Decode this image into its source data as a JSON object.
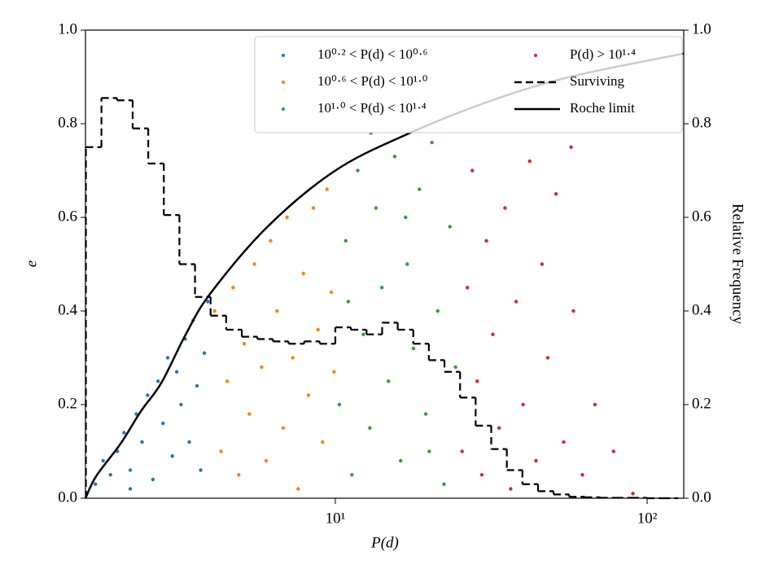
{
  "chart_data": {
    "type": "scatter",
    "x_label": "P(d)",
    "y_label": "e",
    "y2_label": "Relative Frequency",
    "xlog": true,
    "xlim": [
      1.58,
      131
    ],
    "xticks": [
      {
        "value": 10,
        "label": "10¹"
      },
      {
        "value": 100,
        "label": "10²"
      }
    ],
    "ylim": [
      0,
      1
    ],
    "yticks": [
      {
        "value": 0,
        "label": "0.0"
      },
      0.2,
      0.4,
      0.6,
      0.8,
      {
        "value": 1,
        "label": "1.0"
      }
    ],
    "y2lim": [
      0,
      1
    ],
    "y2ticks": [
      {
        "value": 0,
        "label": "0.0"
      },
      0.2,
      0.4,
      0.6,
      0.8,
      {
        "value": 1,
        "label": "1.0"
      }
    ],
    "legend": "upper right",
    "series": [
      {
        "name": "10⁰·² < P(d) < 10⁰·⁶",
        "type": "scatter",
        "color": "#1f77b4",
        "x": [
          1.7,
          1.8,
          1.9,
          2.0,
          2.1,
          2.2,
          2.3,
          2.4,
          2.5,
          2.6,
          2.7,
          2.8,
          2.9,
          3.0,
          3.1,
          3.2,
          3.3,
          3.4,
          3.5,
          3.6,
          3.7,
          3.8,
          3.9,
          2.2
        ],
        "values": [
          0.03,
          0.08,
          0.05,
          0.1,
          0.14,
          0.06,
          0.18,
          0.12,
          0.22,
          0.04,
          0.25,
          0.16,
          0.3,
          0.09,
          0.27,
          0.2,
          0.34,
          0.12,
          0.38,
          0.24,
          0.06,
          0.31,
          0.42,
          0.02
        ]
      },
      {
        "name": "10⁰·⁶ < P(d) < 10¹·⁰",
        "type": "scatter",
        "color": "#ff7f0e",
        "x": [
          4.1,
          4.3,
          4.5,
          4.7,
          4.9,
          5.1,
          5.3,
          5.5,
          5.8,
          6.0,
          6.2,
          6.5,
          6.8,
          7.0,
          7.3,
          7.6,
          7.9,
          8.2,
          8.5,
          8.8,
          9.1,
          9.4,
          9.7,
          9.9
        ],
        "values": [
          0.4,
          0.1,
          0.25,
          0.45,
          0.05,
          0.33,
          0.18,
          0.5,
          0.28,
          0.08,
          0.55,
          0.4,
          0.15,
          0.6,
          0.3,
          0.02,
          0.48,
          0.22,
          0.62,
          0.36,
          0.12,
          0.66,
          0.44,
          0.27
        ]
      },
      {
        "name": "10¹·⁰ < P(d) < 10¹·⁴",
        "type": "scatter",
        "color": "#2ca02c",
        "x": [
          10.3,
          10.8,
          11.3,
          11.8,
          12.3,
          12.9,
          13.5,
          14.1,
          14.8,
          15.5,
          16.2,
          17.0,
          17.8,
          18.6,
          19.5,
          20.4,
          21.3,
          22.3,
          23.3,
          24.3,
          11.0,
          16.8,
          20.0,
          13.0
        ],
        "values": [
          0.2,
          0.55,
          0.05,
          0.7,
          0.35,
          0.15,
          0.62,
          0.45,
          0.25,
          0.73,
          0.08,
          0.5,
          0.32,
          0.66,
          0.18,
          0.76,
          0.4,
          0.03,
          0.58,
          0.28,
          0.42,
          0.6,
          0.1,
          0.78
        ]
      },
      {
        "name": "P(d) > 10¹·⁴",
        "type": "scatter",
        "color": "#d62728",
        "x": [
          25.5,
          26.5,
          27.5,
          28.5,
          29.5,
          30.5,
          32,
          33.5,
          35,
          36.5,
          38,
          40,
          42,
          44,
          46,
          48,
          51,
          54,
          58,
          62,
          68,
          78,
          90,
          57
        ],
        "values": [
          0.1,
          0.45,
          0.7,
          0.25,
          0.05,
          0.55,
          0.35,
          0.15,
          0.62,
          0.02,
          0.42,
          0.2,
          0.72,
          0.08,
          0.5,
          0.3,
          0.65,
          0.12,
          0.4,
          0.05,
          0.2,
          0.1,
          0.01,
          0.75
        ]
      },
      {
        "name": "Surviving",
        "type": "step",
        "color": "#000000",
        "axis": "y2",
        "bins": [
          1.585,
          1.778,
          1.995,
          2.239,
          2.512,
          2.818,
          3.162,
          3.548,
          3.981,
          4.467,
          5.012,
          5.623,
          6.31,
          7.079,
          7.943,
          8.913,
          10,
          11.22,
          12.59,
          14.13,
          15.85,
          17.78,
          19.95,
          22.39,
          25.12,
          28.18,
          31.62,
          35.48,
          39.81,
          44.67,
          50.12,
          56.23,
          63.1,
          70.79,
          79.43,
          89.13,
          100,
          112.2,
          125.9
        ],
        "values": [
          0.75,
          0.855,
          0.85,
          0.79,
          0.715,
          0.605,
          0.5,
          0.43,
          0.39,
          0.36,
          0.345,
          0.34,
          0.335,
          0.33,
          0.335,
          0.33,
          0.365,
          0.36,
          0.35,
          0.375,
          0.36,
          0.33,
          0.295,
          0.27,
          0.215,
          0.155,
          0.105,
          0.06,
          0.03,
          0.015,
          0.008,
          0.003,
          0.002,
          0.001,
          0.001,
          0.001,
          0,
          0
        ]
      },
      {
        "name": "Roche limit",
        "type": "line",
        "color": "#000000",
        "x": [
          1.58,
          1.71,
          2.05,
          2.38,
          2.77,
          3.32,
          3.98,
          6.06,
          10,
          16.9,
          30.9,
          56.4,
          131
        ],
        "values": [
          0,
          0.047,
          0.117,
          0.186,
          0.247,
          0.351,
          0.438,
          0.58,
          0.7,
          0.777,
          0.847,
          0.9,
          0.95
        ]
      }
    ]
  }
}
